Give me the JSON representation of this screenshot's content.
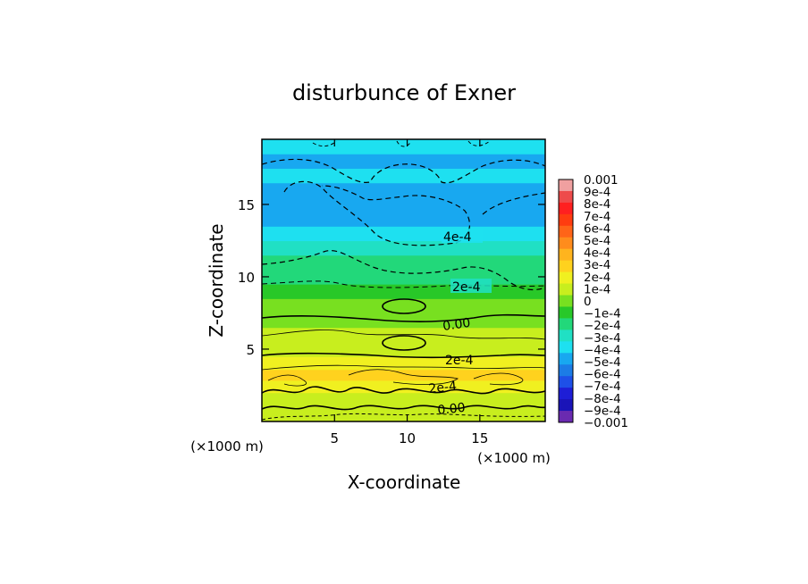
{
  "chart_data": {
    "type": "heatmap",
    "title": "disturbunce of Exner",
    "xlabel": "X-coordinate",
    "ylabel": "Z-coordinate",
    "x_unit": "(×1000 m)",
    "z_unit": "(×1000 m)",
    "xlim": [
      0,
      19.5
    ],
    "ylim": [
      0,
      19.5
    ],
    "x_ticks": [
      "5",
      "10",
      "15"
    ],
    "y_ticks": [
      "5",
      "10",
      "15"
    ],
    "x_tick_values": [
      5,
      10,
      15
    ],
    "y_tick_values": [
      5,
      10,
      15
    ],
    "colorbar": {
      "labels": [
        "0.001",
        "9e-4",
        "8e-4",
        "7e-4",
        "6e-4",
        "5e-4",
        "4e-4",
        "3e-4",
        "2e-4",
        "1e-4",
        "0",
        "−1e-4",
        "−2e-4",
        "−3e-4",
        "−4e-4",
        "−5e-4",
        "−6e-4",
        "−7e-4",
        "−8e-4",
        "−9e-4",
        "−0.001"
      ],
      "values": [
        0.001,
        0.0009,
        0.0008,
        0.0007,
        0.0006,
        0.0005,
        0.0004,
        0.0003,
        0.0002,
        0.0001,
        0,
        -0.0001,
        -0.0002,
        -0.0003,
        -0.0004,
        -0.0005,
        -0.0006,
        -0.0007,
        -0.0008,
        -0.0009,
        -0.001
      ],
      "colors": [
        "#f0a0a0",
        "#ee4b4b",
        "#ff2020",
        "#ff3c10",
        "#ff6418",
        "#ff8c1c",
        "#ffb41e",
        "#ffd21e",
        "#f0f020",
        "#c8ee1e",
        "#78e020",
        "#28c828",
        "#22d87a",
        "#20e0c4",
        "#1ee0f0",
        "#18a8f0",
        "#1c7ce6",
        "#1e50e8",
        "#1e1ed6",
        "#1a14b8",
        "#6a2ab0"
      ]
    },
    "contour_labels": [
      "4e-4",
      "2e-4",
      "0.00",
      "2e-4",
      "2e-4",
      "0.00"
    ],
    "rows": [
      {
        "z": 0.5,
        "value": 5e-05
      },
      {
        "z": 1.5,
        "value": 0.00012
      },
      {
        "z": 2.5,
        "value": 0.00022
      },
      {
        "z": 3.2,
        "value": 0.00028
      },
      {
        "z": 4.0,
        "value": 0.00021
      },
      {
        "z": 5.0,
        "value": 0.00012
      },
      {
        "z": 6.0,
        "value": 7e-05
      },
      {
        "z": 7.0,
        "value": 3e-05
      },
      {
        "z": 8.0,
        "value": -4e-05
      },
      {
        "z": 9.0,
        "value": -0.00012
      },
      {
        "z": 10.0,
        "value": -0.00018
      },
      {
        "z": 11.0,
        "value": -0.00024
      },
      {
        "z": 12.0,
        "value": -0.00031
      },
      {
        "z": 13.0,
        "value": -0.00038
      },
      {
        "z": 14.0,
        "value": -0.00046
      },
      {
        "z": 15.0,
        "value": -0.00052
      },
      {
        "z": 16.0,
        "value": -0.00049
      },
      {
        "z": 17.0,
        "value": -0.00044
      },
      {
        "z": 18.0,
        "value": -0.0005
      },
      {
        "z": 19.0,
        "value": -0.00041
      }
    ]
  }
}
